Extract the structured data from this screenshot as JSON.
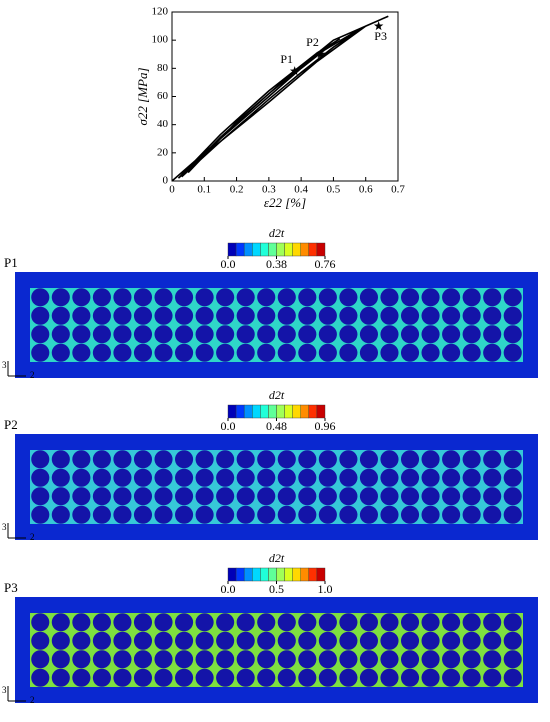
{
  "chart_data": [
    {
      "type": "line",
      "xlabel": "ε22 [%]",
      "ylabel": "σ22 [MPa]",
      "xlim": [
        0,
        0.7
      ],
      "xticks": [
        0,
        0.1,
        0.2,
        0.3,
        0.4,
        0.5,
        0.6,
        0.7
      ],
      "ylim": [
        0,
        120
      ],
      "yticks": [
        0,
        20,
        40,
        60,
        80,
        100,
        120
      ],
      "series": [
        {
          "color": "#000000",
          "x": [
            0,
            0.1,
            0.2,
            0.3,
            0.4,
            0.5,
            0.52,
            0.45,
            0.3,
            0.15,
            0.02,
            0.1,
            0.2,
            0.3,
            0.4,
            0.5,
            0.59,
            0.45,
            0.3,
            0.15,
            0.03,
            0.15,
            0.3,
            0.45,
            0.6,
            0.67,
            0.5,
            0.35,
            0.2,
            0.05
          ],
          "values": [
            0,
            20,
            40,
            60,
            80,
            98,
            101,
            91,
            64,
            33,
            2,
            18,
            38,
            58,
            77,
            95,
            109,
            90,
            62,
            31,
            3,
            28,
            56,
            85,
            110,
            117,
            100,
            72,
            42,
            6
          ]
        }
      ],
      "points": [
        {
          "label": "P1",
          "x": 0.38,
          "y": 78
        },
        {
          "label": "P2",
          "x": 0.46,
          "y": 90
        },
        {
          "label": "P3",
          "x": 0.64,
          "y": 110
        }
      ]
    },
    {
      "type": "contour",
      "title": "P1",
      "colorbar_label": "d2t",
      "clim": [
        0,
        0.76
      ],
      "cticks": [
        {
          "value": 0,
          "label": "0.0"
        },
        0.38,
        0.76
      ],
      "matrix_color": "#2fd6c8",
      "axis_labels": [
        "3",
        "2"
      ]
    },
    {
      "type": "contour",
      "title": "P2",
      "colorbar_label": "d2t",
      "clim": [
        0,
        0.96
      ],
      "cticks": [
        {
          "value": 0,
          "label": "0.0"
        },
        0.48,
        0.96
      ],
      "matrix_color": "#36c8d8",
      "axis_labels": [
        "3",
        "2"
      ]
    },
    {
      "type": "contour",
      "title": "P3",
      "colorbar_label": "d2t",
      "clim": [
        0,
        1
      ],
      "cticks": [
        {
          "value": 0,
          "label": "0.0"
        },
        0.5,
        {
          "value": 1,
          "label": "1.0"
        }
      ],
      "matrix_color": "#7ee040",
      "axis_labels": [
        "3",
        "2"
      ]
    }
  ]
}
